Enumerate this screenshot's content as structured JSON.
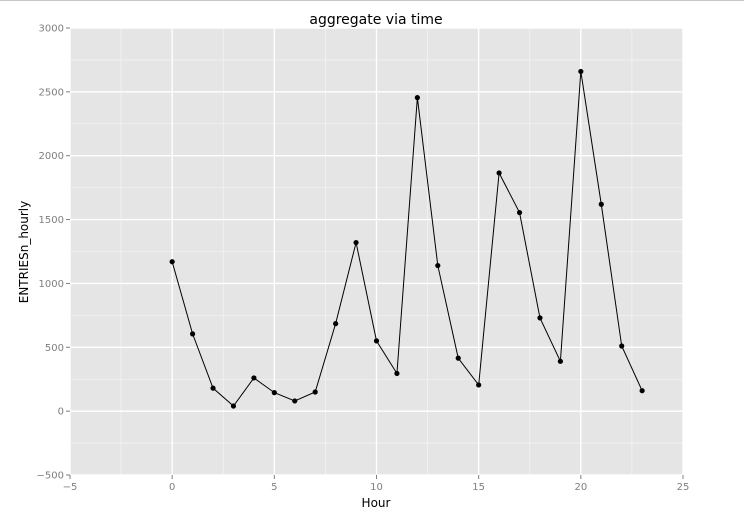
{
  "chart_data": {
    "type": "line",
    "title": "aggregate via time",
    "xlabel": "Hour",
    "ylabel": "ENTRIESn_hourly",
    "xlim": [
      -5,
      25
    ],
    "ylim": [
      -500,
      3000
    ],
    "x_ticks": [
      "−5",
      "0",
      "5",
      "10",
      "15",
      "20",
      "25"
    ],
    "y_ticks": [
      "−500",
      "0",
      "500",
      "1000",
      "1500",
      "2000",
      "2500",
      "3000"
    ],
    "x_tick_values": [
      -5,
      0,
      5,
      10,
      15,
      20,
      25
    ],
    "y_tick_values": [
      -500,
      0,
      500,
      1000,
      1500,
      2000,
      2500,
      3000
    ],
    "grid": true,
    "series": [
      {
        "x": [
          0,
          1,
          2,
          3,
          4,
          5,
          6,
          7,
          8,
          9,
          10,
          11,
          12,
          13,
          14,
          15,
          16,
          17,
          18,
          19,
          20,
          21,
          22,
          23
        ],
        "y": [
          1170,
          605,
          180,
          40,
          260,
          145,
          80,
          150,
          685,
          1320,
          550,
          295,
          2455,
          1140,
          415,
          205,
          1865,
          1555,
          730,
          390,
          2660,
          1620,
          510,
          160
        ]
      }
    ],
    "colors": {
      "panel": "#e5e5e5",
      "grid": "#ffffff",
      "line": "#000000",
      "tick_text": "#7f7f7f"
    }
  }
}
